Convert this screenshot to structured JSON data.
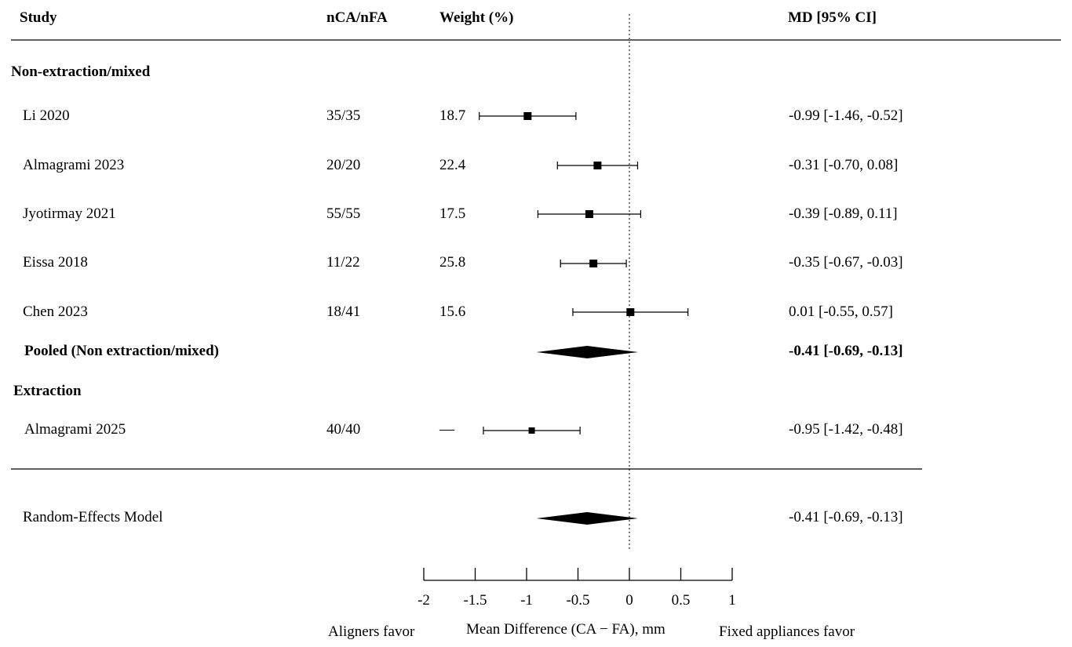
{
  "header": {
    "study": "Study",
    "n": "nCA/nFA",
    "weight": "Weight (%)",
    "md": "MD [95% CI]"
  },
  "groups": [
    {
      "label": "Non-extraction/mixed"
    },
    {
      "label": "Extraction"
    }
  ],
  "footer": {
    "left_label": "Aligners favor",
    "axis_title": "Mean Difference (CA − FA), mm",
    "right_label": "Fixed appliances favor"
  },
  "chart_data": {
    "type": "forest",
    "xlabel": "Mean Difference (CA − FA), mm",
    "xlim": [
      -2,
      1
    ],
    "xticks": [
      {
        "value": -2,
        "label": "-2"
      },
      {
        "value": -1.5,
        "label": "-1.5"
      },
      {
        "value": -1,
        "label": "-1"
      },
      {
        "value": -0.5,
        "label": "-0.5"
      },
      {
        "value": 0,
        "label": "0"
      },
      {
        "value": 0.5,
        "label": "0.5"
      },
      {
        "value": 1,
        "label": "1"
      }
    ],
    "reference_line": 0,
    "studies": [
      {
        "group": 0,
        "study": "Li 2020",
        "n": "35/35",
        "weight": "18.7",
        "md": -0.99,
        "lo": -1.46,
        "hi": -0.52,
        "ci_text": "-0.99 [-1.46, -0.52]"
      },
      {
        "group": 0,
        "study": "Almagrami 2023",
        "n": "20/20",
        "weight": "22.4",
        "md": -0.31,
        "lo": -0.7,
        "hi": 0.08,
        "ci_text": "-0.31 [-0.70, 0.08]"
      },
      {
        "group": 0,
        "study": "Jyotirmay 2021",
        "n": "55/55",
        "weight": "17.5",
        "md": -0.39,
        "lo": -0.89,
        "hi": 0.11,
        "ci_text": "-0.39 [-0.89, 0.11]"
      },
      {
        "group": 0,
        "study": "Eissa 2018",
        "n": "11/22",
        "weight": "25.8",
        "md": -0.35,
        "lo": -0.67,
        "hi": -0.03,
        "ci_text": "-0.35 [-0.67, -0.03]"
      },
      {
        "group": 0,
        "study": "Chen 2023",
        "n": "18/41",
        "weight": "15.6",
        "md": 0.01,
        "lo": -0.55,
        "hi": 0.57,
        "ci_text": "0.01 [-0.55, 0.57]"
      },
      {
        "group": 1,
        "study": "Almagrami 2025",
        "n": "40/40",
        "weight": "—",
        "md": -0.95,
        "lo": -1.42,
        "hi": -0.48,
        "ci_text": "-0.95 [-1.42, -0.48]"
      }
    ],
    "subgroup_pooled": [
      {
        "group": 0,
        "label": "Pooled (Non extraction/mixed)",
        "md": -0.41,
        "lo": -0.69,
        "hi": -0.13,
        "ci_text": "-0.41 [-0.69, -0.13]"
      }
    ],
    "overall": {
      "label": "Random-Effects Model",
      "md": -0.41,
      "lo": -0.69,
      "hi": -0.13,
      "ci_text": "-0.41 [-0.69, -0.13]"
    }
  }
}
